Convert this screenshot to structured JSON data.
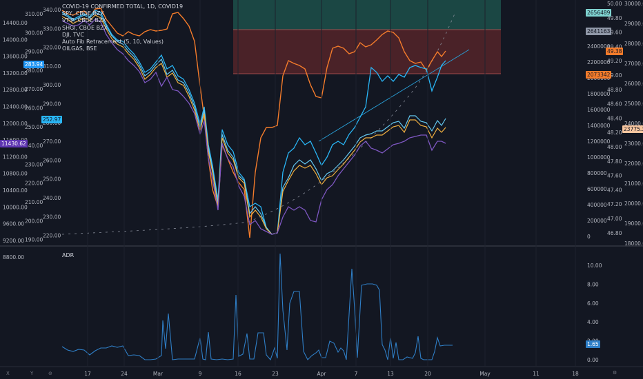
{
  "legend": [
    "COVID-19 CONFIRMED TOTAL, 1D, COVID19",
    "SPY, CBOE BZX",
    "VTIP, CBOE BZX",
    "SHGI, CBOE BZX",
    "DJI, TVC",
    "Auto Fib Retracement (5, 10, Values)",
    "OILGAS, BSE"
  ],
  "adr_label": "ADR",
  "axis_far_left": [
    "14400.00",
    "14000.00",
    "13600.00",
    "13200.00",
    "12800.00",
    "12400.00",
    "12000.00",
    "11600.00",
    "11200.00",
    "10800.00",
    "10400.00",
    "10000.00",
    "9600.00",
    "9200.00",
    "8800.00"
  ],
  "axis_left": [
    "340.00",
    "330.00",
    "320.00",
    "310.00",
    "300.00",
    "290.00",
    "280.00",
    "270.00",
    "260.00",
    "250.00",
    "240.00",
    "230.00",
    "220.00"
  ],
  "axis_inner_left": [
    "310.00",
    "300.00",
    "290.00",
    "280.00",
    "270.00",
    "260.00",
    "250.00",
    "240.00",
    "230.00",
    "220.00",
    "210.00",
    "200.00",
    "190.00"
  ],
  "axis_right1": [
    "2600000",
    "2400000",
    "2200000",
    "2000000",
    "1800000",
    "1600000",
    "1400000",
    "1200000",
    "1000000",
    "800000",
    "600000",
    "400000",
    "200000",
    "0"
  ],
  "axis_right2": [
    "50.00",
    "49.80",
    "49.60",
    "49.40",
    "49.20",
    "49.00",
    "48.80",
    "48.60",
    "48.40",
    "48.20",
    "48.00",
    "47.80",
    "47.60",
    "47.40",
    "47.20",
    "47.00",
    "46.80"
  ],
  "axis_right3": [
    "30000.0",
    "29000.0",
    "28000.0",
    "27000.0",
    "26000.0",
    "25000.0",
    "24000.0",
    "23000.0",
    "22000.0",
    "21000.0",
    "20000.0",
    "19000.0",
    "18000.0"
  ],
  "adr_axis": [
    "10.00",
    "8.00",
    "6.00",
    "4.00",
    "2.00",
    "0.00"
  ],
  "x_labels": [
    "17",
    "24",
    "Mar",
    "9",
    "16",
    "23",
    "Apr",
    "7",
    "13",
    "20",
    "May",
    "11",
    "18"
  ],
  "price_tags": {
    "left_blue": "283.94",
    "left_cyan": "252.97",
    "left_purple": "11430.62",
    "r_covid": "2656489",
    "r_gray": "2641163",
    "r_orange": "49.38",
    "r_orange2": "2073342",
    "r_dji": "23775.3",
    "adr_value": "1.65"
  },
  "footer": [
    "X",
    "Y",
    "⊘",
    "⚙"
  ],
  "colors": {
    "bg": "#131722",
    "grid": "#1e222d",
    "orange": "#f57c2b",
    "cyan": "#29b6f6",
    "sky": "#64c8f0",
    "gold": "#f0b040",
    "purple": "#7e57c2",
    "teal_zone": "#1b4744",
    "red_zone": "#4a2228"
  }
}
